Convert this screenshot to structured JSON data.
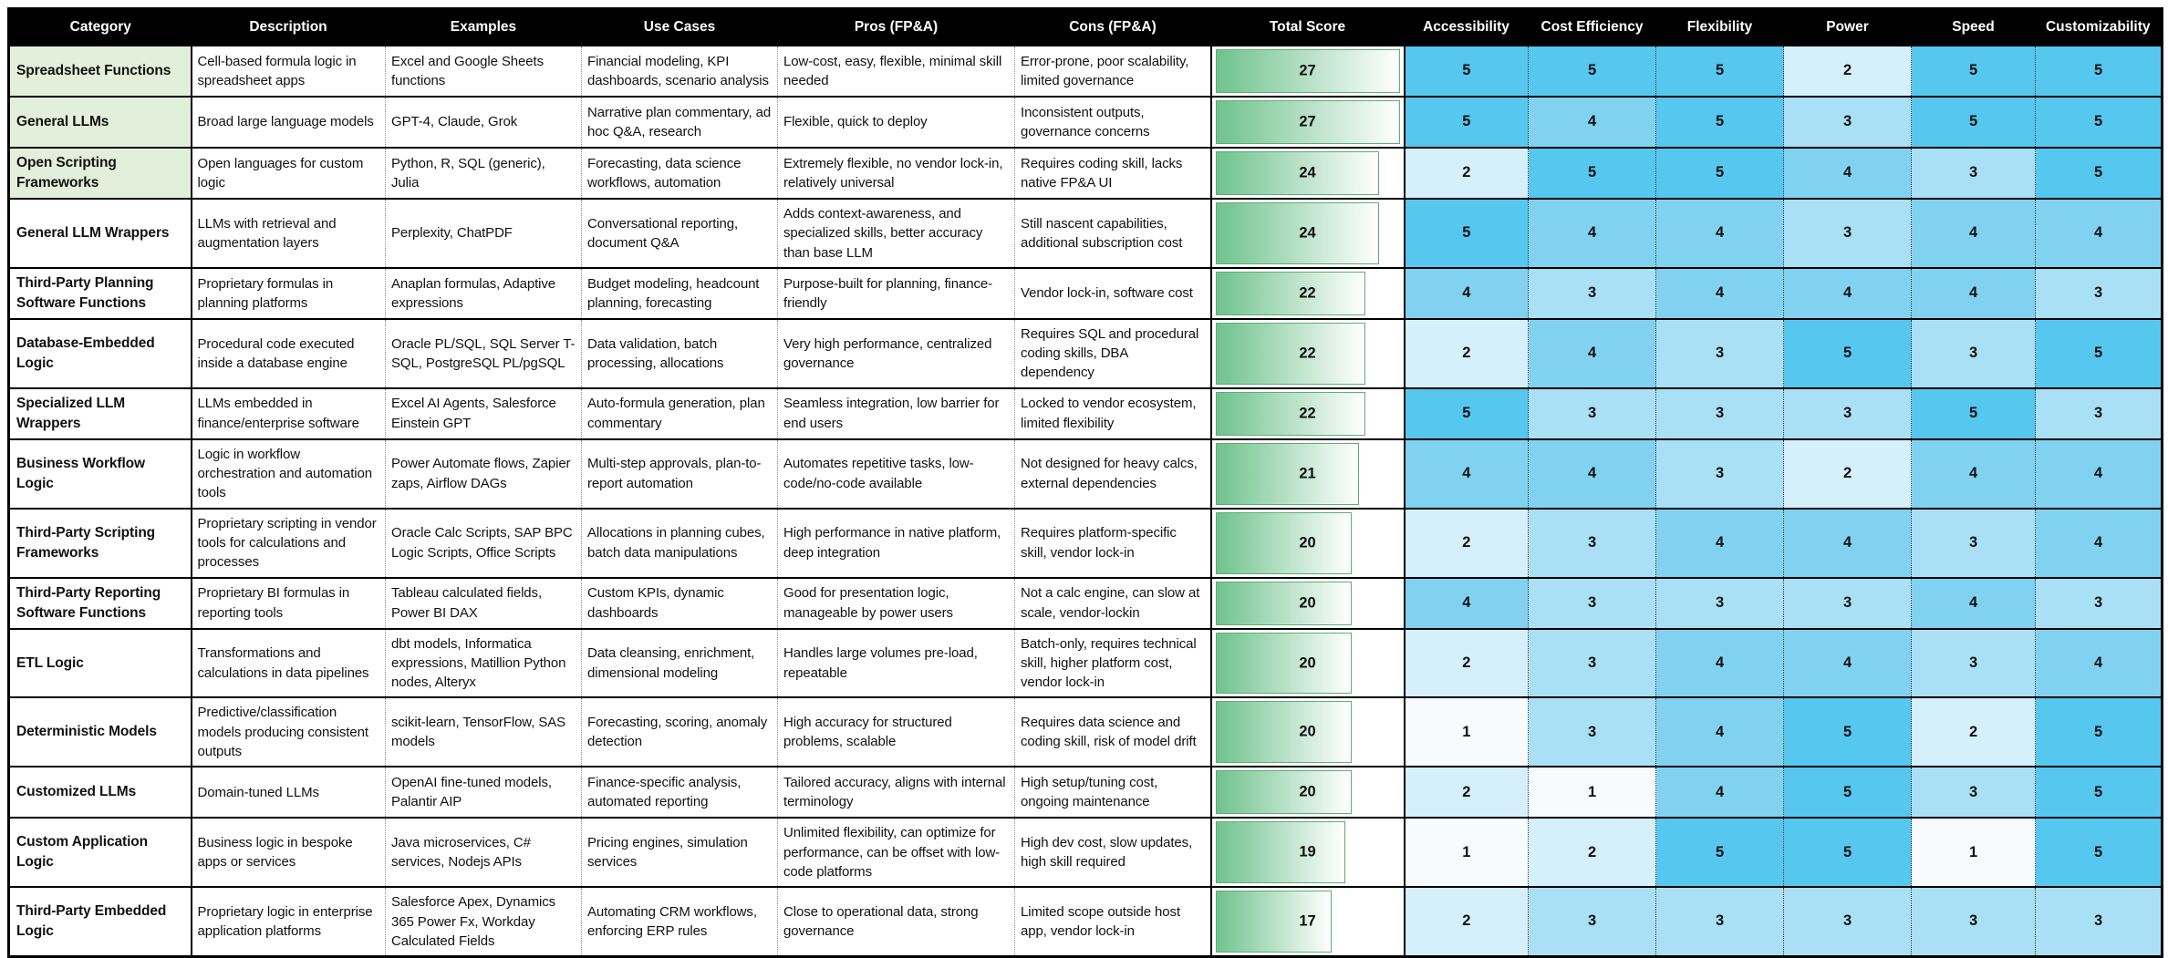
{
  "header": {
    "columns": [
      "Category",
      "Description",
      "Examples",
      "Use Cases",
      "Pros (FP&A)",
      "Cons (FP&A)",
      "Total Score",
      "Accessibility",
      "Cost Efficiency",
      "Flexibility",
      "Power",
      "Speed",
      "Customizability"
    ]
  },
  "colors": {
    "category_highlight_green": "#e2efda",
    "bar_gradient_start": "#6fc28d",
    "bar_gradient_end": "#ffffff",
    "bar_border": "#5fae72",
    "blue_scale": {
      "1": "#f7fbfe",
      "2": "#d5effb",
      "3": "#a9e0f5",
      "4": "#81d2f1",
      "5": "#56c7ef"
    },
    "header_bg": "#000000",
    "header_text": "#ffffff"
  },
  "score_max": 27,
  "rows": [
    {
      "category": "Spreadsheet Functions",
      "highlight": true,
      "description": "Cell-based formula logic in spreadsheet apps",
      "examples": "Excel and Google Sheets functions",
      "use_cases": "Financial modeling, KPI dashboards, scenario analysis",
      "pros": "Low-cost, easy, flexible, minimal skill needed",
      "cons": "Error-prone, poor scalability, limited governance",
      "total_score": 27,
      "scores": [
        5,
        5,
        5,
        2,
        5,
        5
      ]
    },
    {
      "category": "General LLMs",
      "highlight": true,
      "description": "Broad large language models",
      "examples": "GPT-4, Claude, Grok",
      "use_cases": "Narrative plan commentary, ad hoc Q&A, research",
      "pros": "Flexible, quick to deploy",
      "cons": "Inconsistent outputs, governance concerns",
      "total_score": 27,
      "scores": [
        5,
        4,
        5,
        3,
        5,
        5
      ]
    },
    {
      "category": "Open Scripting Frameworks",
      "highlight": true,
      "description": "Open languages for custom logic",
      "examples": "Python, R, SQL (generic), Julia",
      "use_cases": "Forecasting, data science workflows, automation",
      "pros": "Extremely flexible, no vendor lock-in, relatively universal",
      "cons": "Requires coding skill, lacks native FP&A UI",
      "total_score": 24,
      "scores": [
        2,
        5,
        5,
        4,
        3,
        5
      ]
    },
    {
      "category": "General LLM Wrappers",
      "highlight": false,
      "description": "LLMs with retrieval and augmentation layers",
      "examples": "Perplexity, ChatPDF",
      "use_cases": "Conversational reporting, document Q&A",
      "pros": "Adds context-awareness, and specialized skills, better accuracy than base LLM",
      "cons": "Still nascent capabilities, additional subscription cost",
      "total_score": 24,
      "scores": [
        5,
        4,
        4,
        3,
        4,
        4
      ]
    },
    {
      "category": "Third-Party Planning Software Functions",
      "highlight": false,
      "description": "Proprietary formulas in planning platforms",
      "examples": "Anaplan formulas, Adaptive expressions",
      "use_cases": "Budget modeling, headcount planning, forecasting",
      "pros": "Purpose-built for planning, finance-friendly",
      "cons": "Vendor lock-in, software cost",
      "total_score": 22,
      "scores": [
        4,
        3,
        4,
        4,
        4,
        3
      ]
    },
    {
      "category": "Database-Embedded Logic",
      "highlight": false,
      "description": "Procedural code executed inside a database engine",
      "examples": "Oracle PL/SQL, SQL Server T-SQL, PostgreSQL PL/pgSQL",
      "use_cases": "Data validation, batch processing, allocations",
      "pros": "Very high performance, centralized governance",
      "cons": "Requires SQL and procedural coding skills, DBA dependency",
      "total_score": 22,
      "scores": [
        2,
        4,
        3,
        5,
        3,
        5
      ]
    },
    {
      "category": "Specialized LLM Wrappers",
      "highlight": false,
      "description": "LLMs embedded in finance/enterprise software",
      "examples": "Excel AI Agents, Salesforce Einstein GPT",
      "use_cases": "Auto-formula generation, plan commentary",
      "pros": "Seamless integration, low barrier for end users",
      "cons": "Locked to vendor ecosystem, limited flexibility",
      "total_score": 22,
      "scores": [
        5,
        3,
        3,
        3,
        5,
        3
      ]
    },
    {
      "category": "Business Workflow Logic",
      "highlight": false,
      "description": "Logic in workflow orchestration and automation tools",
      "examples": "Power Automate flows, Zapier zaps, Airflow DAGs",
      "use_cases": "Multi-step approvals, plan-to-report automation",
      "pros": "Automates repetitive tasks, low-code/no-code available",
      "cons": "Not designed for heavy calcs, external dependencies",
      "total_score": 21,
      "scores": [
        4,
        4,
        3,
        2,
        4,
        4
      ]
    },
    {
      "category": "Third-Party Scripting Frameworks",
      "highlight": false,
      "description": "Proprietary scripting in vendor tools for calculations and processes",
      "examples": "Oracle Calc Scripts, SAP BPC Logic Scripts, Office Scripts",
      "use_cases": "Allocations in planning cubes, batch data manipulations",
      "pros": "High performance in native platform, deep integration",
      "cons": "Requires platform-specific skill, vendor lock-in",
      "total_score": 20,
      "scores": [
        2,
        3,
        4,
        4,
        3,
        4
      ]
    },
    {
      "category": "Third-Party Reporting Software Functions",
      "highlight": false,
      "description": "Proprietary BI formulas in reporting tools",
      "examples": "Tableau calculated fields, Power BI DAX",
      "use_cases": "Custom KPIs, dynamic dashboards",
      "pros": "Good for presentation logic, manageable by power users",
      "cons": "Not a calc engine, can slow at scale, vendor-lockin",
      "total_score": 20,
      "scores": [
        4,
        3,
        3,
        3,
        4,
        3
      ]
    },
    {
      "category": "ETL Logic",
      "highlight": false,
      "description": "Transformations and calculations in data pipelines",
      "examples": "dbt models, Informatica expressions, Matillion Python nodes, Alteryx",
      "use_cases": "Data cleansing, enrichment, dimensional modeling",
      "pros": "Handles large volumes pre-load, repeatable",
      "cons": "Batch-only, requires technical skill, higher platform cost, vendor lock-in",
      "total_score": 20,
      "scores": [
        2,
        3,
        4,
        4,
        3,
        4
      ]
    },
    {
      "category": "Deterministic Models",
      "highlight": false,
      "description": "Predictive/classification models producing consistent outputs",
      "examples": "scikit-learn, TensorFlow, SAS models",
      "use_cases": "Forecasting, scoring, anomaly detection",
      "pros": "High accuracy for structured problems, scalable",
      "cons": "Requires data science and coding skill, risk of model drift",
      "total_score": 20,
      "scores": [
        1,
        3,
        4,
        5,
        2,
        5
      ]
    },
    {
      "category": "Customized LLMs",
      "highlight": false,
      "description": "Domain-tuned LLMs",
      "examples": "OpenAI fine-tuned models, Palantir AIP",
      "use_cases": "Finance-specific analysis, automated reporting",
      "pros": "Tailored accuracy, aligns with internal terminology",
      "cons": "High setup/tuning cost, ongoing maintenance",
      "total_score": 20,
      "scores": [
        2,
        1,
        4,
        5,
        3,
        5
      ]
    },
    {
      "category": "Custom Application Logic",
      "highlight": false,
      "description": "Business logic in bespoke apps or services",
      "examples": "Java microservices, C# services, Nodejs APIs",
      "use_cases": "Pricing engines, simulation services",
      "pros": "Unlimited flexibility, can optimize for performance, can be offset with low-code platforms",
      "cons": "High dev cost, slow updates, high skill required",
      "total_score": 19,
      "scores": [
        1,
        2,
        5,
        5,
        1,
        5
      ]
    },
    {
      "category": "Third-Party Embedded Logic",
      "highlight": false,
      "description": "Proprietary logic in enterprise application platforms",
      "examples": "Salesforce Apex, Dynamics 365 Power Fx, Workday Calculated Fields",
      "use_cases": "Automating CRM workflows, enforcing ERP rules",
      "pros": "Close to operational data, strong governance",
      "cons": "Limited scope outside host app, vendor lock-in",
      "total_score": 17,
      "scores": [
        2,
        3,
        3,
        3,
        3,
        3
      ]
    }
  ]
}
